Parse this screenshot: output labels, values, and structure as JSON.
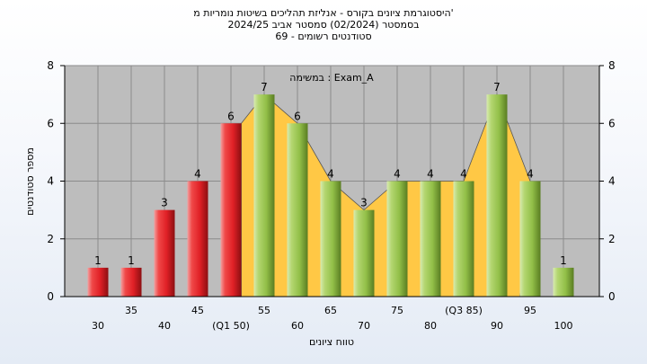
{
  "titles": {
    "line1": "היסטוגרמת ציונים בקורס - אנליזת תהליכים בשיטות נומריות מ'",
    "line2": "בסמסטר  (02/2024)  סמסטר אביב 2024/25",
    "line3": "סטודנטים רשומים - 69"
  },
  "chart_data": {
    "type": "bar",
    "title": "היסטוגרמת ציונים בקורס - אנליזת תהליכים בשיטות נומריות מ'",
    "subtitle": "בסמסטר  (02/2024)  סמסטר אביב 2024/25 | סטודנטים רשומים - 69",
    "annotation": "במשימה : Exam_A",
    "xlabel": "טווח ציונים",
    "ylabel": "מספר סטודנטים",
    "ylim": [
      0,
      8
    ],
    "yticks": [
      0,
      2,
      4,
      6,
      8
    ],
    "grid": true,
    "categories": [
      "30",
      "35",
      "40",
      "45",
      "(Q1 50)",
      "55",
      "60",
      "65",
      "70",
      "75",
      "80",
      "(Q3 85)",
      "90",
      "95",
      "100"
    ],
    "values": [
      1,
      1,
      3,
      4,
      6,
      7,
      6,
      4,
      3,
      4,
      4,
      4,
      7,
      4,
      1
    ],
    "bar_groups": [
      "red",
      "red",
      "red",
      "red",
      "red",
      "green",
      "green",
      "green",
      "green",
      "green",
      "green",
      "green",
      "green",
      "green",
      "green"
    ],
    "colors": {
      "red": "#e8292d",
      "green": "#98c44e",
      "area": "#ffc845",
      "plot_bg": "#bdbdbd",
      "grid": "#8c8c8c"
    }
  }
}
